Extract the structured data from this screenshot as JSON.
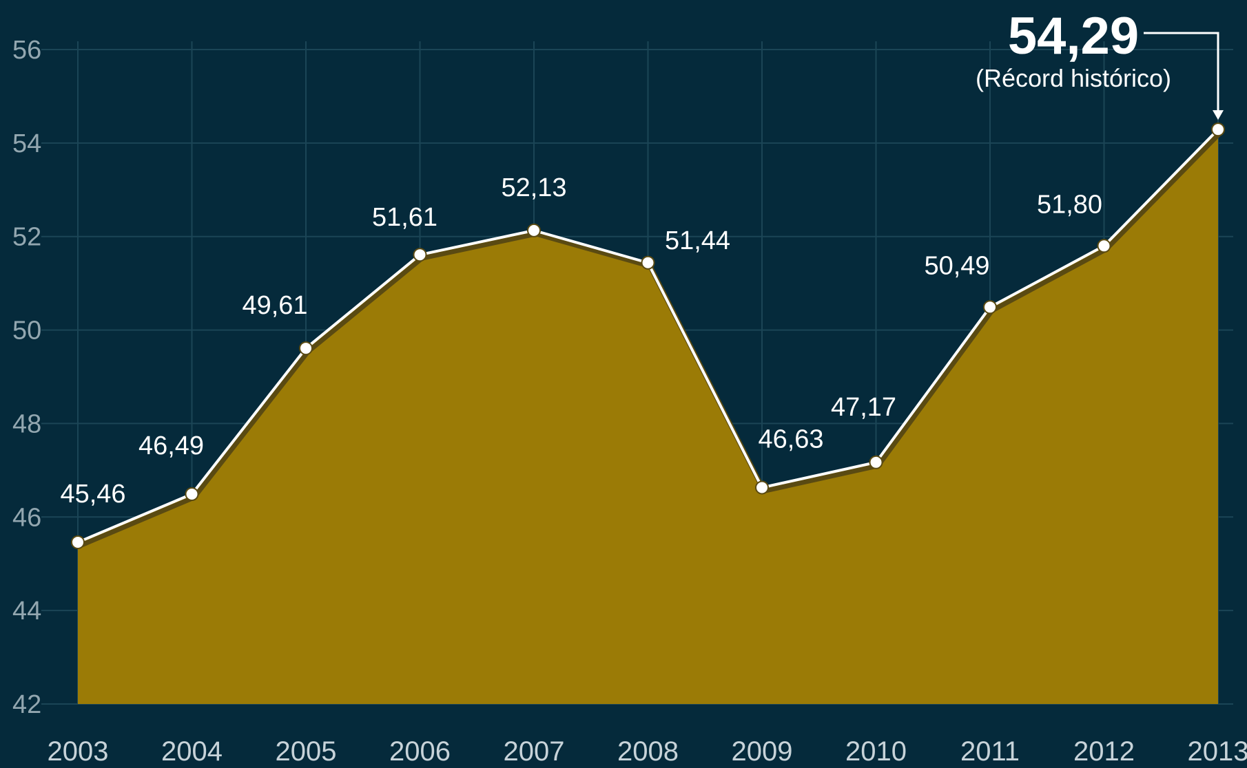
{
  "chart_data": {
    "type": "area",
    "x": [
      "2003",
      "2004",
      "2005",
      "2006",
      "2007",
      "2008",
      "2009",
      "2010",
      "2011",
      "2012",
      "2013"
    ],
    "values": [
      45.46,
      46.49,
      49.61,
      51.61,
      52.13,
      51.44,
      46.63,
      47.17,
      50.49,
      51.8,
      54.29
    ],
    "value_labels": [
      "45,46",
      "46,49",
      "49,61",
      "51,61",
      "52,13",
      "51,44",
      "46,63",
      "47,17",
      "50,49",
      "51,80",
      "54,29"
    ],
    "ylim": [
      42,
      56
    ],
    "yticks": [
      42,
      44,
      46,
      48,
      50,
      52,
      54,
      56
    ],
    "grid": true,
    "annotation": {
      "value": "54,29",
      "note": "(Récord histórico)"
    },
    "colors": {
      "background": "#052a3b",
      "area": "#9b7b06",
      "line": "#ffffff",
      "grid": "#1b4556"
    }
  }
}
